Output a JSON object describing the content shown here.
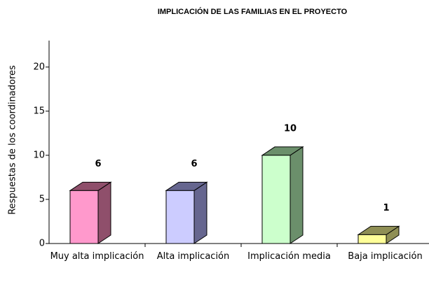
{
  "chart_data": {
    "type": "bar3d",
    "title": "IMPLICACIÓN DE LAS FAMILIAS EN EL PROYECTO",
    "y_label": "Respuestas de los coordinadores",
    "categories": [
      "Muy alta implicación",
      "Alta implicación",
      "Implicación media",
      "Baja implicación"
    ],
    "values": [
      6,
      6,
      10,
      1
    ],
    "colors": [
      "#ff99cc",
      "#ccccff",
      "#ccffcc",
      "#ffff99"
    ],
    "side_colors": [
      "#8f4f6b",
      "#66668f",
      "#6b8f6b",
      "#8f8f55"
    ],
    "ylim": [
      0,
      23
    ],
    "yticks": [
      0,
      5,
      10,
      15,
      20
    ],
    "grid": false
  }
}
